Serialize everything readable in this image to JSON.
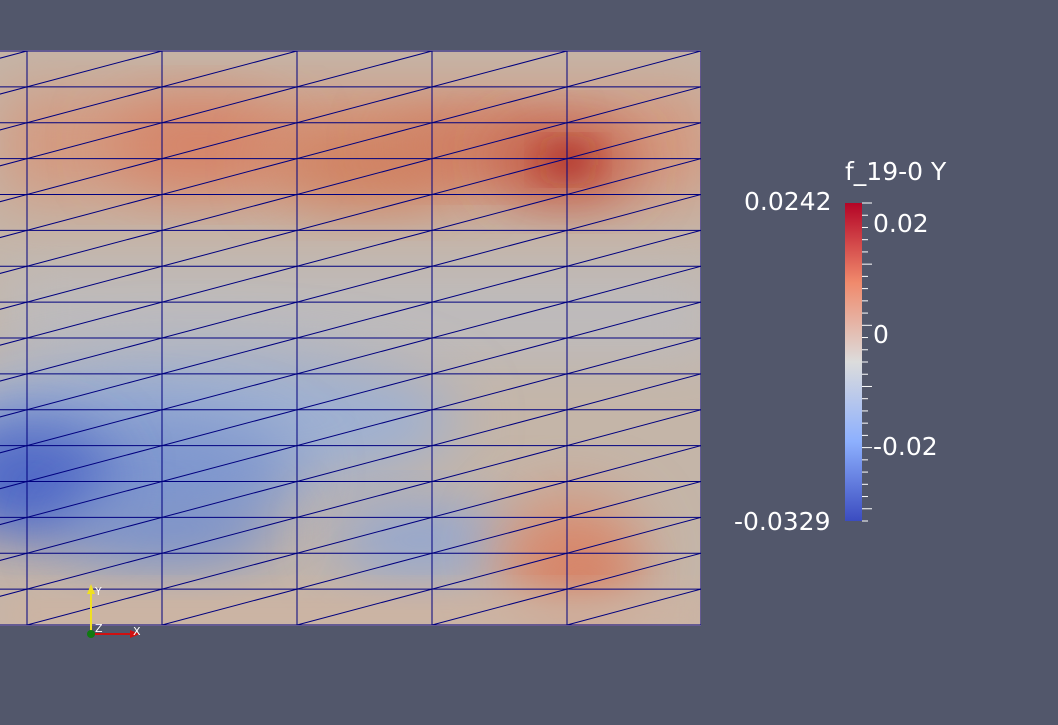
{
  "colorbar": {
    "title": "f_19-0 Y",
    "range_max": "0.0242",
    "range_min": "-0.0329",
    "labels": [
      "0.02",
      "0",
      "-0.02"
    ],
    "colors": [
      "#b40426",
      "#f08a6c",
      "#dcdcdc",
      "#8db0fe",
      "#3b4cc0"
    ]
  },
  "axes_triad": {
    "y": "Y",
    "z": "Z",
    "x": "X"
  },
  "background_color": "#52576b",
  "mesh_line_color": "#00007f"
}
